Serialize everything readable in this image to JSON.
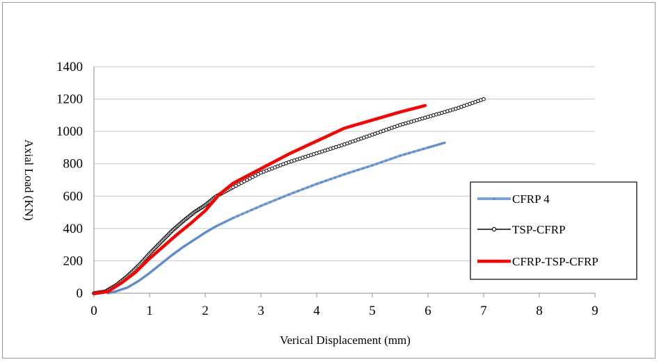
{
  "chart_data": {
    "type": "line",
    "title": "",
    "xlabel": "Verical Displacement (mm)",
    "ylabel": "Axial Load (KN)",
    "xlim": [
      0,
      9
    ],
    "ylim": [
      0,
      1400
    ],
    "x_ticks": [
      "0",
      "1",
      "2",
      "3",
      "4",
      "5",
      "6",
      "7",
      "8",
      "9"
    ],
    "y_ticks": [
      "0",
      "200",
      "400",
      "600",
      "800",
      "1000",
      "1200",
      "1400"
    ],
    "grid": "horizontal",
    "legend_position": "right",
    "series": [
      {
        "name": "CFRP 4",
        "color": "#7aa3dc",
        "marker": "dot",
        "points": [
          [
            0.25,
            0
          ],
          [
            0.4,
            12
          ],
          [
            0.6,
            35
          ],
          [
            0.8,
            75
          ],
          [
            1.0,
            125
          ],
          [
            1.2,
            180
          ],
          [
            1.4,
            235
          ],
          [
            1.6,
            285
          ],
          [
            1.8,
            330
          ],
          [
            2.0,
            375
          ],
          [
            2.2,
            415
          ],
          [
            2.5,
            465
          ],
          [
            3.0,
            540
          ],
          [
            3.5,
            610
          ],
          [
            4.0,
            675
          ],
          [
            4.5,
            735
          ],
          [
            5.0,
            790
          ],
          [
            5.5,
            850
          ],
          [
            6.0,
            900
          ],
          [
            6.3,
            930
          ]
        ]
      },
      {
        "name": "TSP-CFRP",
        "color": "#000000",
        "marker": "circle",
        "points": [
          [
            0.0,
            0
          ],
          [
            0.2,
            10
          ],
          [
            0.4,
            50
          ],
          [
            0.6,
            105
          ],
          [
            0.8,
            170
          ],
          [
            1.0,
            245
          ],
          [
            1.2,
            315
          ],
          [
            1.4,
            385
          ],
          [
            1.6,
            445
          ],
          [
            1.8,
            500
          ],
          [
            2.0,
            545
          ],
          [
            2.2,
            600
          ],
          [
            2.5,
            655
          ],
          [
            3.0,
            745
          ],
          [
            3.5,
            810
          ],
          [
            4.0,
            865
          ],
          [
            4.5,
            920
          ],
          [
            5.0,
            980
          ],
          [
            5.5,
            1040
          ],
          [
            6.0,
            1090
          ],
          [
            6.5,
            1140
          ],
          [
            7.0,
            1200
          ]
        ]
      },
      {
        "name": "CFRP-TSP-CFRP",
        "color": "#ff0000",
        "marker": "none",
        "points": [
          [
            0.0,
            0
          ],
          [
            0.25,
            10
          ],
          [
            0.5,
            65
          ],
          [
            0.75,
            130
          ],
          [
            1.0,
            215
          ],
          [
            1.25,
            290
          ],
          [
            1.5,
            365
          ],
          [
            1.75,
            435
          ],
          [
            2.0,
            510
          ],
          [
            2.25,
            610
          ],
          [
            2.5,
            680
          ],
          [
            3.0,
            770
          ],
          [
            3.5,
            860
          ],
          [
            4.0,
            940
          ],
          [
            4.5,
            1020
          ],
          [
            5.0,
            1070
          ],
          [
            5.5,
            1120
          ],
          [
            5.95,
            1160
          ]
        ]
      }
    ]
  }
}
